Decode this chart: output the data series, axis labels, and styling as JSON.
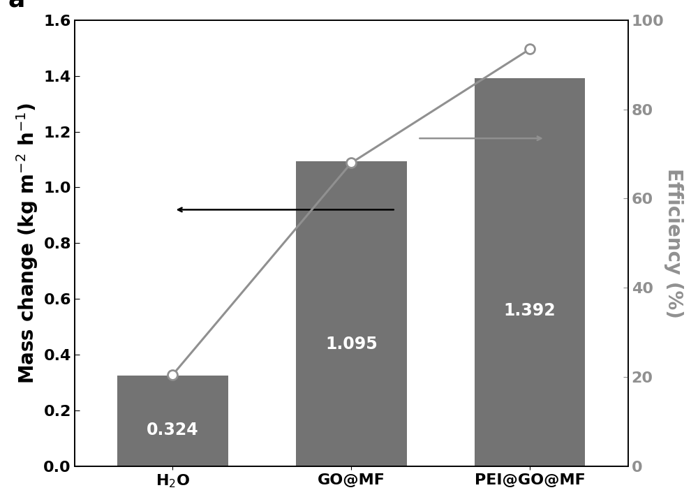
{
  "categories": [
    "H$_2$O",
    "GO@MF",
    "PEI@GO@MF"
  ],
  "bar_values": [
    0.324,
    1.095,
    1.392
  ],
  "bar_color": "#737373",
  "bar_labels": [
    "0.324",
    "1.095",
    "1.392"
  ],
  "efficiency_values": [
    20.5,
    68.0,
    93.5
  ],
  "ylim_left": [
    0,
    1.6
  ],
  "ylim_right": [
    0,
    100
  ],
  "ylabel_left": "Mass change (kg m$^{-2}$ h$^{-1}$)",
  "ylabel_right": "Efficiency (%)",
  "line_color": "#909090",
  "marker_color": "white",
  "marker_edge_color": "#909090",
  "title_label": "a",
  "bar_label_fontsize": 17,
  "axis_label_fontsize": 20,
  "tick_fontsize": 16,
  "background_color": "#ffffff",
  "bar_width": 0.62,
  "x_positions": [
    0,
    1,
    2
  ],
  "xlim": [
    -0.55,
    2.55
  ]
}
